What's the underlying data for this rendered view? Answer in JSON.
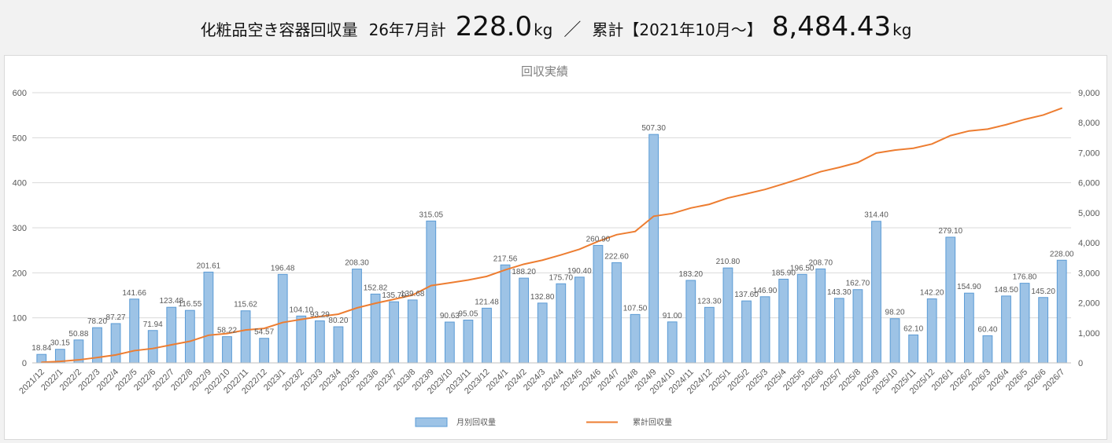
{
  "header": {
    "title": "化粧品空き容器回収量",
    "month_label": "26年7月計",
    "month_value": "228.0",
    "unit": "kg",
    "separator": "／",
    "total_label": "累計【2021年10月～】",
    "total_value": "8,484.43",
    "total_unit": "kg"
  },
  "chart_data": {
    "type": "bar",
    "title": "回収実績",
    "categories": [
      "2021/12",
      "2022/1",
      "2022/2",
      "2022/3",
      "2022/4",
      "2022/5",
      "2022/6",
      "2022/7",
      "2022/8",
      "2022/9",
      "2022/10",
      "2022/11",
      "2022/12",
      "2023/1",
      "2023/2",
      "2023/3",
      "2023/4",
      "2023/5",
      "2023/6",
      "2023/7",
      "2023/8",
      "2023/9",
      "2023/10",
      "2023/11",
      "2023/12",
      "2024/1",
      "2024/2",
      "2024/3",
      "2024/4",
      "2024/5",
      "2024/6",
      "2024/7",
      "2024/8",
      "2024/9",
      "2024/10",
      "2024/11",
      "2024/12",
      "2025/1",
      "2025/2",
      "2025/3",
      "2025/4",
      "2025/5",
      "2025/6",
      "2025/7",
      "2025/8",
      "2025/9",
      "2025/10",
      "2025/11",
      "2025/12",
      "2026/1",
      "2026/2",
      "2026/3",
      "2026/4",
      "2026/5",
      "2026/6",
      "2026/7"
    ],
    "series": [
      {
        "name": "月別回収量",
        "kind": "bar",
        "axis": "left",
        "color": "#9dc3e6",
        "values": [
          18.84,
          30.15,
          50.88,
          78.2,
          87.27,
          141.66,
          71.94,
          123.48,
          116.55,
          201.61,
          58.22,
          115.62,
          54.57,
          196.48,
          104.1,
          93.29,
          80.2,
          208.3,
          152.82,
          135.7,
          139.68,
          315.05,
          90.63,
          95.05,
          121.48,
          217.56,
          188.2,
          132.8,
          175.7,
          190.4,
          260.9,
          222.6,
          107.5,
          507.3,
          91.0,
          183.2,
          123.3,
          210.8,
          137.6,
          146.9,
          185.9,
          196.5,
          208.7,
          143.3,
          162.7,
          314.4,
          98.2,
          62.1,
          142.2,
          279.1,
          154.9,
          60.4,
          148.5,
          176.8,
          145.2,
          228.0
        ],
        "labels": [
          "18.84",
          "30.15",
          "50.88",
          "78.20",
          "87.27",
          "141.66",
          "71.94",
          "123.48",
          "116.55",
          "201.61",
          "58.22",
          "115.62",
          "54.57",
          "196.48",
          "104.10",
          "93.29",
          "80.20",
          "208.30",
          "152.82",
          "135.70",
          "139.68",
          "315.05",
          "90.63",
          "95.05",
          "121.48",
          "217.56",
          "188.20",
          "132.80",
          "175.70",
          "190.40",
          "260.90",
          "222.60",
          "107.50",
          "507.30",
          "91.00",
          "183.20",
          "123.30",
          "210.80",
          "137.60",
          "146.90",
          "185.90",
          "196.50",
          "208.70",
          "143.30",
          "162.70",
          "314.40",
          "98.20",
          "62.10",
          "142.20",
          "279.10",
          "154.90",
          "60.40",
          "148.50",
          "176.80",
          "145.20",
          "228.00"
        ]
      },
      {
        "name": "累計回収量",
        "kind": "line",
        "axis": "right",
        "color": "#ed7d31",
        "values": [
          18.84,
          48.99,
          99.87,
          178.07,
          265.34,
          407.0,
          478.94,
          602.42,
          718.97,
          920.58,
          978.8,
          1094.42,
          1148.99,
          1345.47,
          1449.57,
          1542.86,
          1623.06,
          1831.36,
          1984.18,
          2119.88,
          2259.56,
          2574.61,
          2665.24,
          2760.29,
          2881.77,
          3099.33,
          3287.53,
          3420.33,
          3596.03,
          3786.43,
          4047.33,
          4269.93,
          4377.43,
          4884.73,
          4975.73,
          5158.93,
          5282.23,
          5493.03,
          5630.63,
          5777.53,
          5963.43,
          6159.93,
          6368.63,
          6511.93,
          6674.63,
          6989.03,
          7087.23,
          7149.33,
          7291.53,
          7570.63,
          7725.53,
          7785.93,
          7934.43,
          8111.23,
          8256.43,
          8484.43
        ]
      }
    ],
    "yleft": {
      "min": 0,
      "max": 600,
      "ticks": [
        "0",
        "100",
        "200",
        "300",
        "400",
        "500",
        "600"
      ]
    },
    "yright": {
      "min": 0,
      "max": 9000,
      "ticks": [
        "0",
        "1,000",
        "2,000",
        "3,000",
        "4,000",
        "5,000",
        "6,000",
        "7,000",
        "8,000",
        "9,000"
      ]
    },
    "grid": true,
    "legend": "bottom-center"
  }
}
